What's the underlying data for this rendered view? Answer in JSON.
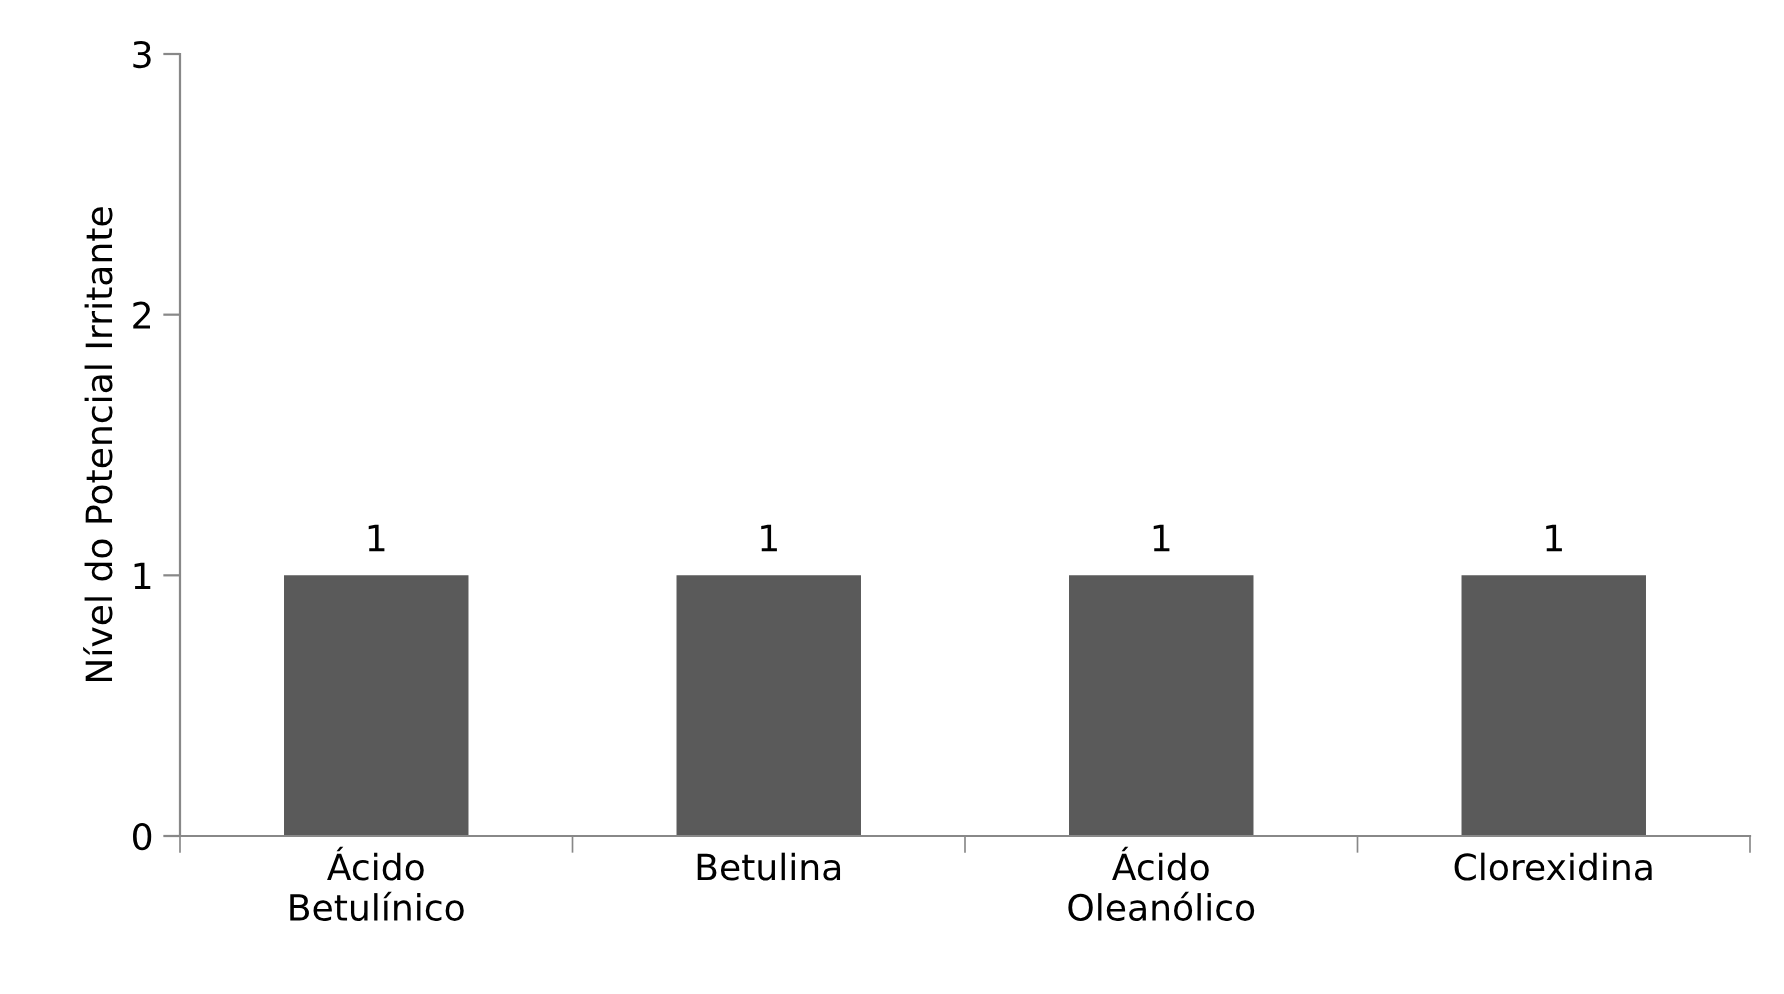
{
  "chart_data": {
    "type": "bar",
    "ylabel": "Nível do Potencial Irritante",
    "categories": [
      "Ácido\nBetulínico",
      "Betulina",
      "Ácido\nOleanólico",
      "Clorexidina"
    ],
    "values": [
      1,
      1,
      1,
      1
    ],
    "color": "#5a5a5a",
    "ylim": [
      0,
      3
    ],
    "yticks": [
      0,
      1,
      2,
      3
    ],
    "grid": false,
    "data_labels": true
  }
}
